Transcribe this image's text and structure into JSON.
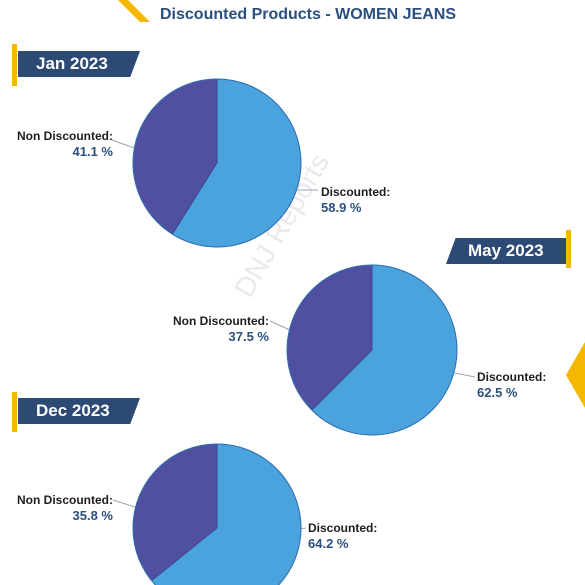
{
  "header": {
    "title": "Discounted Products - WOMEN JEANS"
  },
  "watermark": "DNJ Reports",
  "colors": {
    "discounted": "#4aa3dc",
    "non_discounted": "#5150a0",
    "accent": "#f5b700",
    "banner": "#2c4a73"
  },
  "chart_data": [
    {
      "type": "pie",
      "title": "Jan 2023",
      "slices": [
        {
          "label": "Discounted:",
          "value": 58.9,
          "display": "58.9 %"
        },
        {
          "label": "Non Discounted:",
          "value": 41.1,
          "display": "41.1 %"
        }
      ]
    },
    {
      "type": "pie",
      "title": "May 2023",
      "slices": [
        {
          "label": "Discounted:",
          "value": 62.5,
          "display": "62.5 %"
        },
        {
          "label": "Non  Discounted:",
          "value": 37.5,
          "display": "37.5 %"
        }
      ]
    },
    {
      "type": "pie",
      "title": "Dec 2023",
      "slices": [
        {
          "label": "Discounted:",
          "value": 64.2,
          "display": "64.2 %"
        },
        {
          "label": "Non Discounted:",
          "value": 35.8,
          "display": "35.8 %"
        }
      ]
    }
  ]
}
